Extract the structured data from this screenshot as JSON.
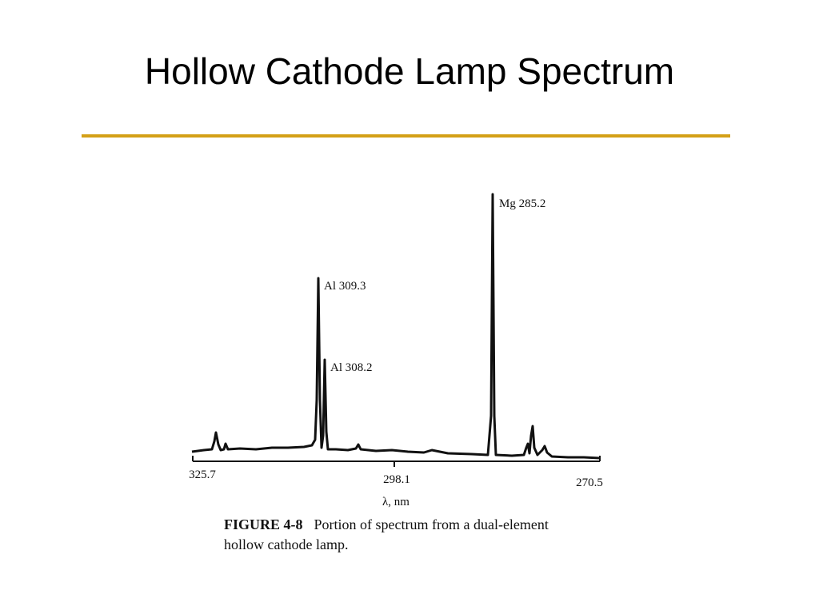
{
  "slide": {
    "title": "Hollow Cathode Lamp Spectrum"
  },
  "figure": {
    "peaks": [
      {
        "label": "Mg 285.2"
      },
      {
        "label": "Al 309.3"
      },
      {
        "label": "Al 308.2"
      }
    ],
    "xticks": [
      "325.7",
      "298.1",
      "270.5"
    ],
    "xlabel": "λ, nm",
    "caption": {
      "label": "FIGURE 4-8",
      "text": "Portion of spectrum from a dual-element hollow cathode lamp."
    }
  }
}
